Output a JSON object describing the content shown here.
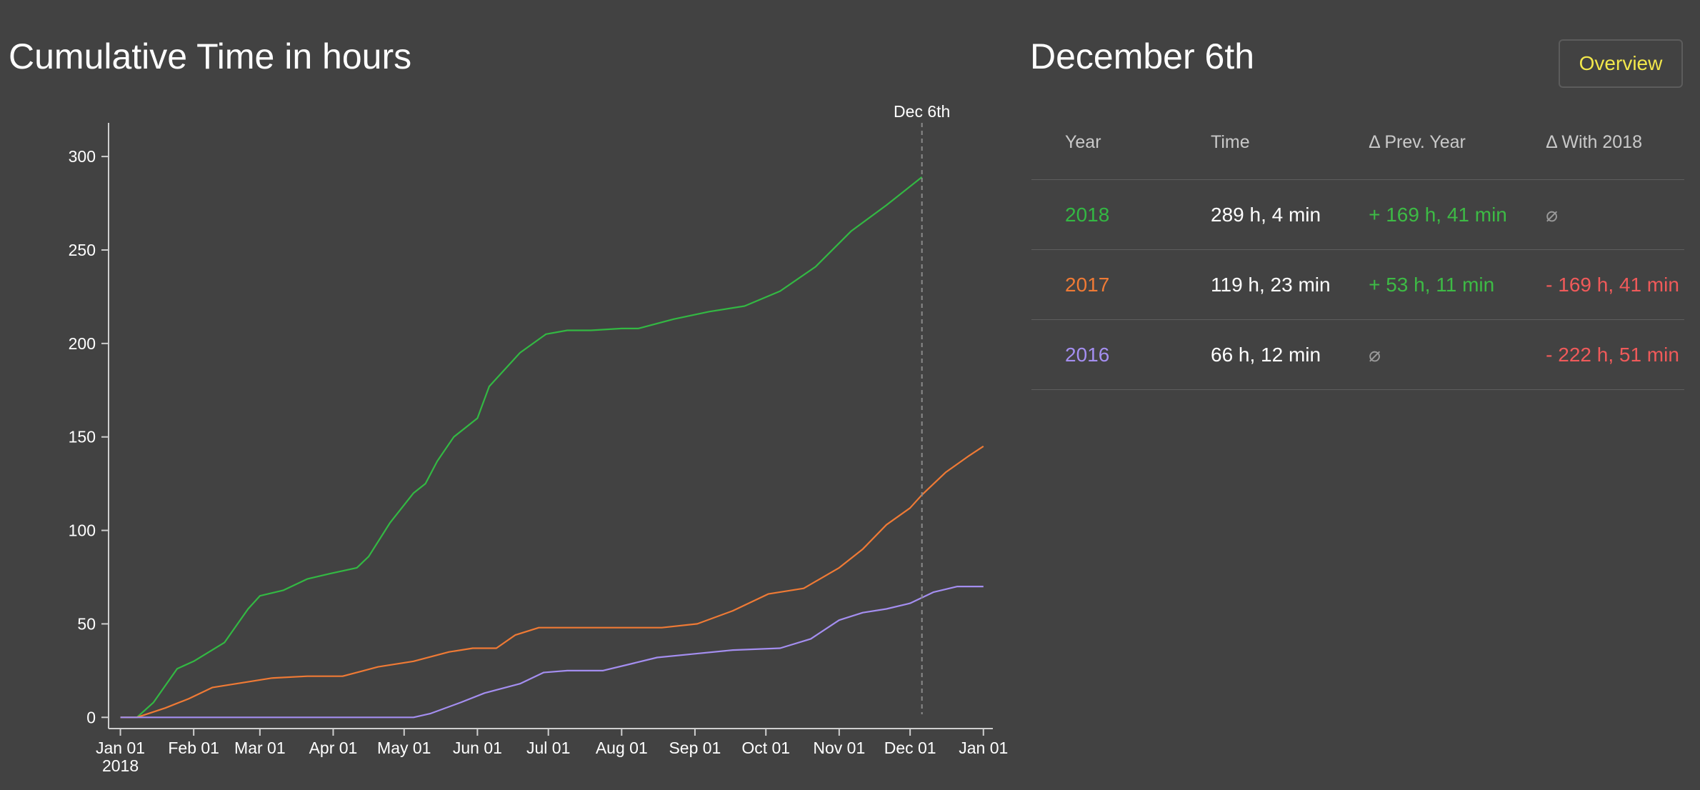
{
  "chart_title": "Cumulative Time in hours",
  "side_title": "December 6th",
  "overview_button": "Overview",
  "colors": {
    "2018": "#33b843",
    "2017": "#ef7a35",
    "2016": "#a48ef0",
    "marker": "#8a8a8a",
    "axis": "#cfcfcf"
  },
  "table": {
    "headers": [
      "Year",
      "Time",
      "Δ Prev. Year",
      "Δ With 2018"
    ],
    "rows": [
      {
        "year": "2018",
        "time": "289 h, 4 min",
        "prev": "+ 169 h, 41 min",
        "prev_class": "pos",
        "with2018": "⌀",
        "with_class": "none"
      },
      {
        "year": "2017",
        "time": "119 h, 23 min",
        "prev": "+ 53 h, 11 min",
        "prev_class": "pos",
        "with2018": "- 169 h, 41 min",
        "with_class": "neg"
      },
      {
        "year": "2016",
        "time": "66 h, 12 min",
        "prev": "⌀",
        "prev_class": "none",
        "with2018": "- 222 h, 51 min",
        "with_class": "neg"
      }
    ]
  },
  "chart_data": {
    "type": "line",
    "title": "Cumulative Time in hours",
    "x_axis": {
      "ticks": [
        "Jan 01",
        "Feb 01",
        "Mar 01",
        "Apr 01",
        "May 01",
        "Jun 01",
        "Jul 01",
        "Aug 01",
        "Sep 01",
        "Oct 01",
        "Nov 01",
        "Dec 01",
        "Jan 01"
      ],
      "tick_days": [
        1,
        32,
        60,
        91,
        121,
        152,
        182,
        213,
        244,
        274,
        305,
        335,
        366
      ],
      "year_label": "2018",
      "range_days": [
        -4,
        370
      ]
    },
    "y_axis": {
      "ticks": [
        0,
        50,
        100,
        150,
        200,
        250,
        300
      ],
      "range": [
        -6,
        318
      ]
    },
    "marker": {
      "label": "Dec 6th",
      "day": 340
    },
    "series": [
      {
        "name": "2018",
        "points": [
          [
            1,
            0
          ],
          [
            8,
            0
          ],
          [
            15,
            8
          ],
          [
            25,
            26
          ],
          [
            32,
            30
          ],
          [
            45,
            40
          ],
          [
            55,
            58
          ],
          [
            60,
            65
          ],
          [
            70,
            68
          ],
          [
            80,
            74
          ],
          [
            90,
            77
          ],
          [
            101,
            80
          ],
          [
            106,
            86
          ],
          [
            115,
            104
          ],
          [
            125,
            120
          ],
          [
            130,
            125
          ],
          [
            135,
            137
          ],
          [
            142,
            150
          ],
          [
            152,
            160
          ],
          [
            157,
            177
          ],
          [
            170,
            195
          ],
          [
            181,
            205
          ],
          [
            190,
            207
          ],
          [
            200,
            207
          ],
          [
            213,
            208
          ],
          [
            220,
            208
          ],
          [
            235,
            213
          ],
          [
            250,
            217
          ],
          [
            265,
            220
          ],
          [
            280,
            228
          ],
          [
            295,
            241
          ],
          [
            310,
            260
          ],
          [
            325,
            274
          ],
          [
            340,
            289
          ]
        ]
      },
      {
        "name": "2017",
        "points": [
          [
            1,
            0
          ],
          [
            8,
            0
          ],
          [
            20,
            5
          ],
          [
            30,
            10
          ],
          [
            40,
            16
          ],
          [
            55,
            19
          ],
          [
            65,
            21
          ],
          [
            80,
            22
          ],
          [
            95,
            22
          ],
          [
            110,
            27
          ],
          [
            125,
            30
          ],
          [
            140,
            35
          ],
          [
            150,
            37
          ],
          [
            160,
            37
          ],
          [
            168,
            44
          ],
          [
            178,
            48
          ],
          [
            190,
            48
          ],
          [
            210,
            48
          ],
          [
            230,
            48
          ],
          [
            245,
            50
          ],
          [
            260,
            57
          ],
          [
            275,
            66
          ],
          [
            290,
            69
          ],
          [
            305,
            80
          ],
          [
            315,
            90
          ],
          [
            325,
            103
          ],
          [
            335,
            112
          ],
          [
            340,
            119
          ],
          [
            350,
            131
          ],
          [
            360,
            140
          ],
          [
            366,
            145
          ]
        ]
      },
      {
        "name": "2016",
        "points": [
          [
            1,
            0
          ],
          [
            60,
            0
          ],
          [
            100,
            0
          ],
          [
            125,
            0
          ],
          [
            132,
            2
          ],
          [
            145,
            8
          ],
          [
            155,
            13
          ],
          [
            170,
            18
          ],
          [
            180,
            24
          ],
          [
            190,
            25
          ],
          [
            205,
            25
          ],
          [
            215,
            28
          ],
          [
            228,
            32
          ],
          [
            244,
            34
          ],
          [
            260,
            36
          ],
          [
            280,
            37
          ],
          [
            293,
            42
          ],
          [
            305,
            52
          ],
          [
            315,
            56
          ],
          [
            325,
            58
          ],
          [
            335,
            61
          ],
          [
            345,
            67
          ],
          [
            355,
            70
          ],
          [
            366,
            70
          ]
        ]
      }
    ]
  }
}
